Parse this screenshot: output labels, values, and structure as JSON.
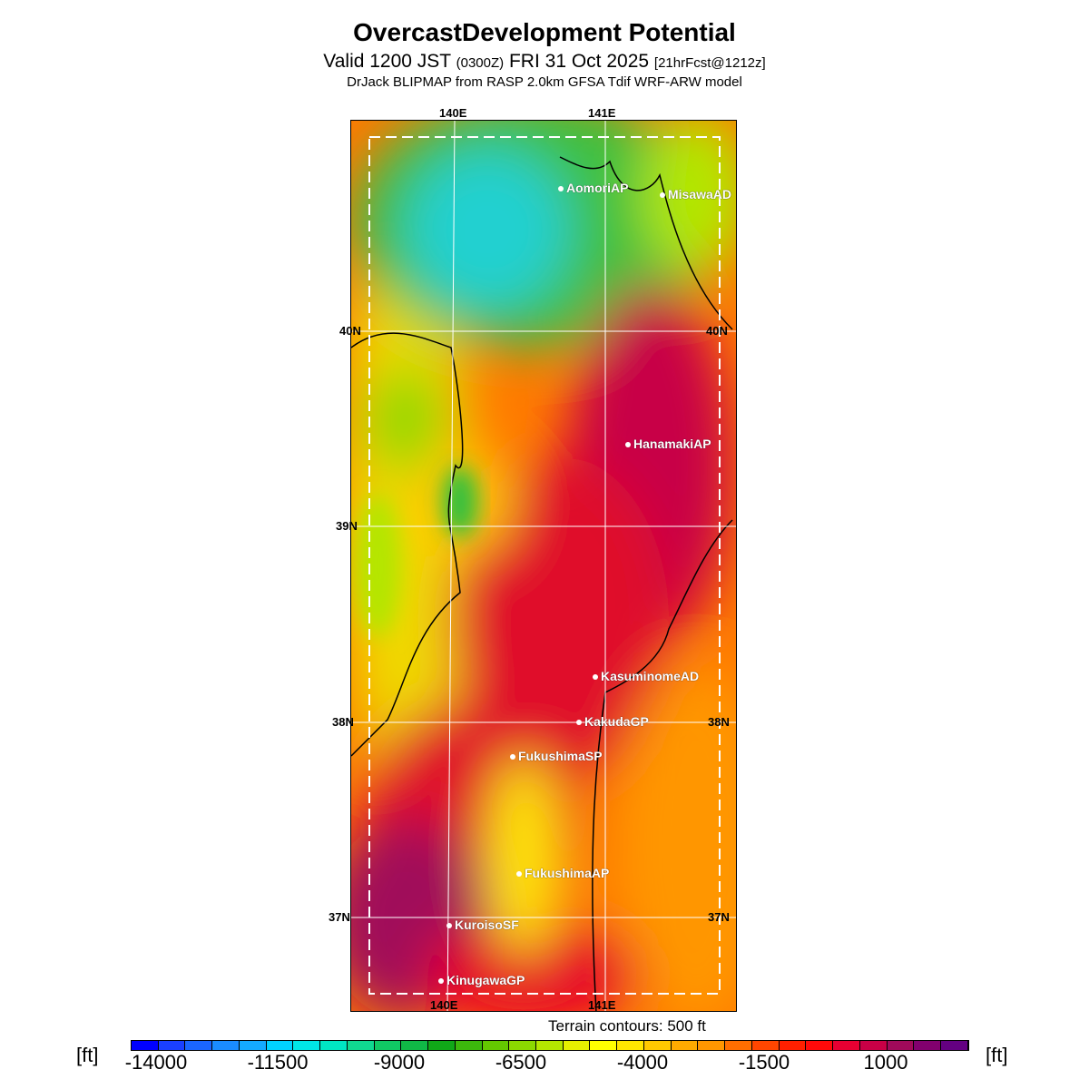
{
  "title": "OvercastDevelopment Potential",
  "subtitle": {
    "valid": "Valid 1200 JST",
    "utc": "(0300Z)",
    "date": "FRI 31 Oct 2025",
    "fcst": "[21hrFcst@1212z]"
  },
  "model": "DrJack BLIPMAP from RASP 2.0km GFSA Tdif WRF-ARW model",
  "axes": {
    "lon": [
      "140E",
      "141E"
    ],
    "lat": [
      "40N",
      "39N",
      "38N",
      "37N"
    ]
  },
  "stations": [
    "AomoriAP",
    "MisawaAD",
    "HanamakiAP",
    "KasuminomeAD",
    "KakudaGP",
    "FukushimaSP",
    "FukushimaAP",
    "KuroisoSF",
    "KinugawaGP"
  ],
  "terrain_note": "Terrain contours: 500 ft",
  "colorbar": {
    "unit": "[ft]",
    "labels": [
      "-14000",
      "-11500",
      "-9000",
      "-6500",
      "-4000",
      "-1500",
      "1000"
    ],
    "colors": [
      "#0000ff",
      "#1a40ff",
      "#1a66ff",
      "#1a8cff",
      "#14aaff",
      "#00d2ff",
      "#00e6e6",
      "#00e6c3",
      "#10d890",
      "#10c864",
      "#10b846",
      "#10a818",
      "#3cb80c",
      "#64c800",
      "#8cd800",
      "#b4e600",
      "#e6f000",
      "#ffff00",
      "#ffe600",
      "#ffc800",
      "#ffaa00",
      "#ff9600",
      "#ff6e00",
      "#ff4600",
      "#ff2000",
      "#ff0a0a",
      "#e60032",
      "#c80046",
      "#a00a5a",
      "#82006e",
      "#640082"
    ]
  }
}
